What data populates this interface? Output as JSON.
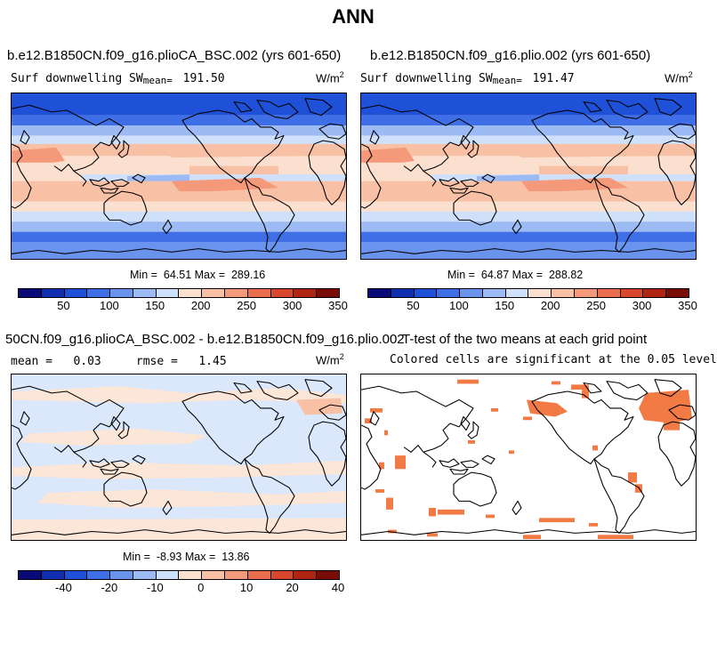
{
  "main_title": "ANN",
  "panels": {
    "top_left": {
      "title": "b.e12.B1850CN.f09_g16.plioCA_BSC.002 (yrs 601-650)",
      "variable": "Surf downwelling SW",
      "mean_label": "mean=",
      "mean_value": "191.50",
      "units": "W/m",
      "units_exp": "2",
      "min_label": "Min =",
      "min_value": "64.51",
      "max_label": "Max =",
      "max_value": "289.16"
    },
    "top_right": {
      "title": "b.e12.B1850CN.f09_g16.plio.002 (yrs 601-650)",
      "variable": "Surf downwelling SW",
      "mean_label": "mean=",
      "mean_value": "191.47",
      "units": "W/m",
      "units_exp": "2",
      "min_label": "Min =",
      "min_value": "64.87",
      "max_label": "Max =",
      "max_value": "288.82"
    },
    "bottom_left": {
      "title": "50CN.f09_g16.plioCA_BSC.002 - b.e12.B1850CN.f09_g16.plio.002",
      "mean_label": "mean =",
      "mean_value": "0.03",
      "rmse_label": "rmse =",
      "rmse_value": "1.45",
      "units": "W/m",
      "units_exp": "2",
      "min_label": "Min =",
      "min_value": "-8.93",
      "max_label": "Max =",
      "max_value": "13.86"
    },
    "bottom_right": {
      "title": "T-test of the two means at each grid point",
      "subtitle": "Colored cells are significant at the 0.05 level"
    }
  },
  "colorbars": {
    "absolute": {
      "labels": [
        "50",
        "100",
        "150",
        "200",
        "250",
        "300",
        "350"
      ],
      "colors": [
        "#0a0a78",
        "#1030b0",
        "#1e50d8",
        "#3f6fe6",
        "#6a93ee",
        "#9cbaf4",
        "#cfe0fa",
        "#fbe0d0",
        "#f8c0a4",
        "#f49a7a",
        "#ea6e4c",
        "#d8472c",
        "#b02412",
        "#7a0c08"
      ]
    },
    "difference": {
      "labels": [
        "-40",
        "-20",
        "-10",
        "0",
        "10",
        "20",
        "40"
      ],
      "colors": [
        "#0a0a78",
        "#1030b0",
        "#1e50d8",
        "#3f6fe6",
        "#6a93ee",
        "#9cbaf4",
        "#cfe0fa",
        "#fbe0d0",
        "#f8c0a4",
        "#f49a7a",
        "#ea6e4c",
        "#d8472c",
        "#b02412",
        "#7a0c08"
      ]
    }
  }
}
